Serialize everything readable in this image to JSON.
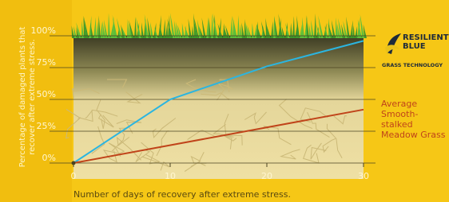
{
  "chart_data": {
    "type": "line",
    "y_label": "Percentage of damaged plants that recover after extreme stress.",
    "x_label": "Number of days of recovery after extreme stress.",
    "x": [
      0,
      10,
      20,
      30
    ],
    "series": [
      {
        "name": "RESILIENT BLUE",
        "color": "#2bb5e0",
        "values": [
          0,
          50,
          76,
          96
        ]
      },
      {
        "name": "Average Smooth-stalked Meadow Grass",
        "color": "#c0441a",
        "values": [
          0,
          null,
          null,
          42
        ]
      }
    ],
    "legend_tagline": "GRASS TECHNOLOGY",
    "xlim": [
      0,
      30
    ],
    "xticks": [
      0,
      10,
      20,
      30
    ],
    "ylim": [
      0,
      100
    ],
    "yticks": [
      {
        "value": 0,
        "label": "0%"
      },
      {
        "value": 25,
        "label": "25%"
      },
      {
        "value": 50,
        "label": "50%"
      },
      {
        "value": 75,
        "label": "75%"
      },
      {
        "value": 100,
        "label": "100%"
      }
    ],
    "grid": true
  }
}
